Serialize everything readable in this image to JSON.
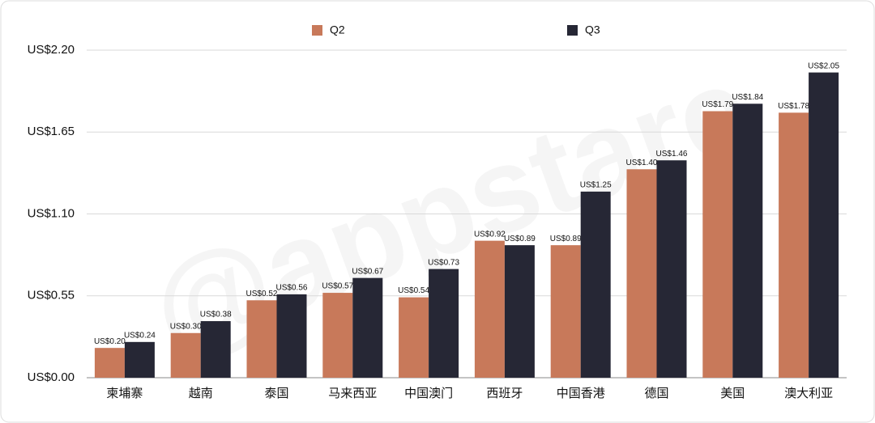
{
  "chart_data": {
    "type": "bar",
    "watermark": "@appstare",
    "categories": [
      "柬埔寨",
      "越南",
      "泰国",
      "马来西亚",
      "中国澳门",
      "西班牙",
      "中国香港",
      "德国",
      "美国",
      "澳大利亚"
    ],
    "series": [
      {
        "name": "Q2",
        "color": "#c8795a",
        "values": [
          0.2,
          0.3,
          0.52,
          0.57,
          0.54,
          0.92,
          0.89,
          1.4,
          1.79,
          1.78
        ],
        "value_labels": [
          "US$0.20",
          "US$0.30",
          "US$0.52",
          "US$0.57",
          "US$0.54",
          "US$0.92",
          "US$0.89",
          "US$1.40",
          "US$1.79",
          "US$1.78"
        ]
      },
      {
        "name": "Q3",
        "color": "#262735",
        "values": [
          0.24,
          0.38,
          0.56,
          0.67,
          0.73,
          0.89,
          1.25,
          1.46,
          1.84,
          2.05
        ],
        "value_labels": [
          "US$0.24",
          "US$0.38",
          "US$0.56",
          "US$0.67",
          "US$0.73",
          "US$0.89",
          "US$1.25",
          "US$1.46",
          "US$1.84",
          "US$2.05"
        ]
      }
    ],
    "ylim": [
      0,
      2.2
    ],
    "yticks": [
      {
        "value": 0,
        "label": "US$0.00"
      },
      {
        "value": 0.55,
        "label": "US$0.55"
      },
      {
        "value": 1.1,
        "label": "US$1.10"
      },
      {
        "value": 1.65,
        "label": "US$1.65"
      },
      {
        "value": 2.2,
        "label": "US$2.20"
      }
    ],
    "grid": true,
    "legend": "top"
  }
}
